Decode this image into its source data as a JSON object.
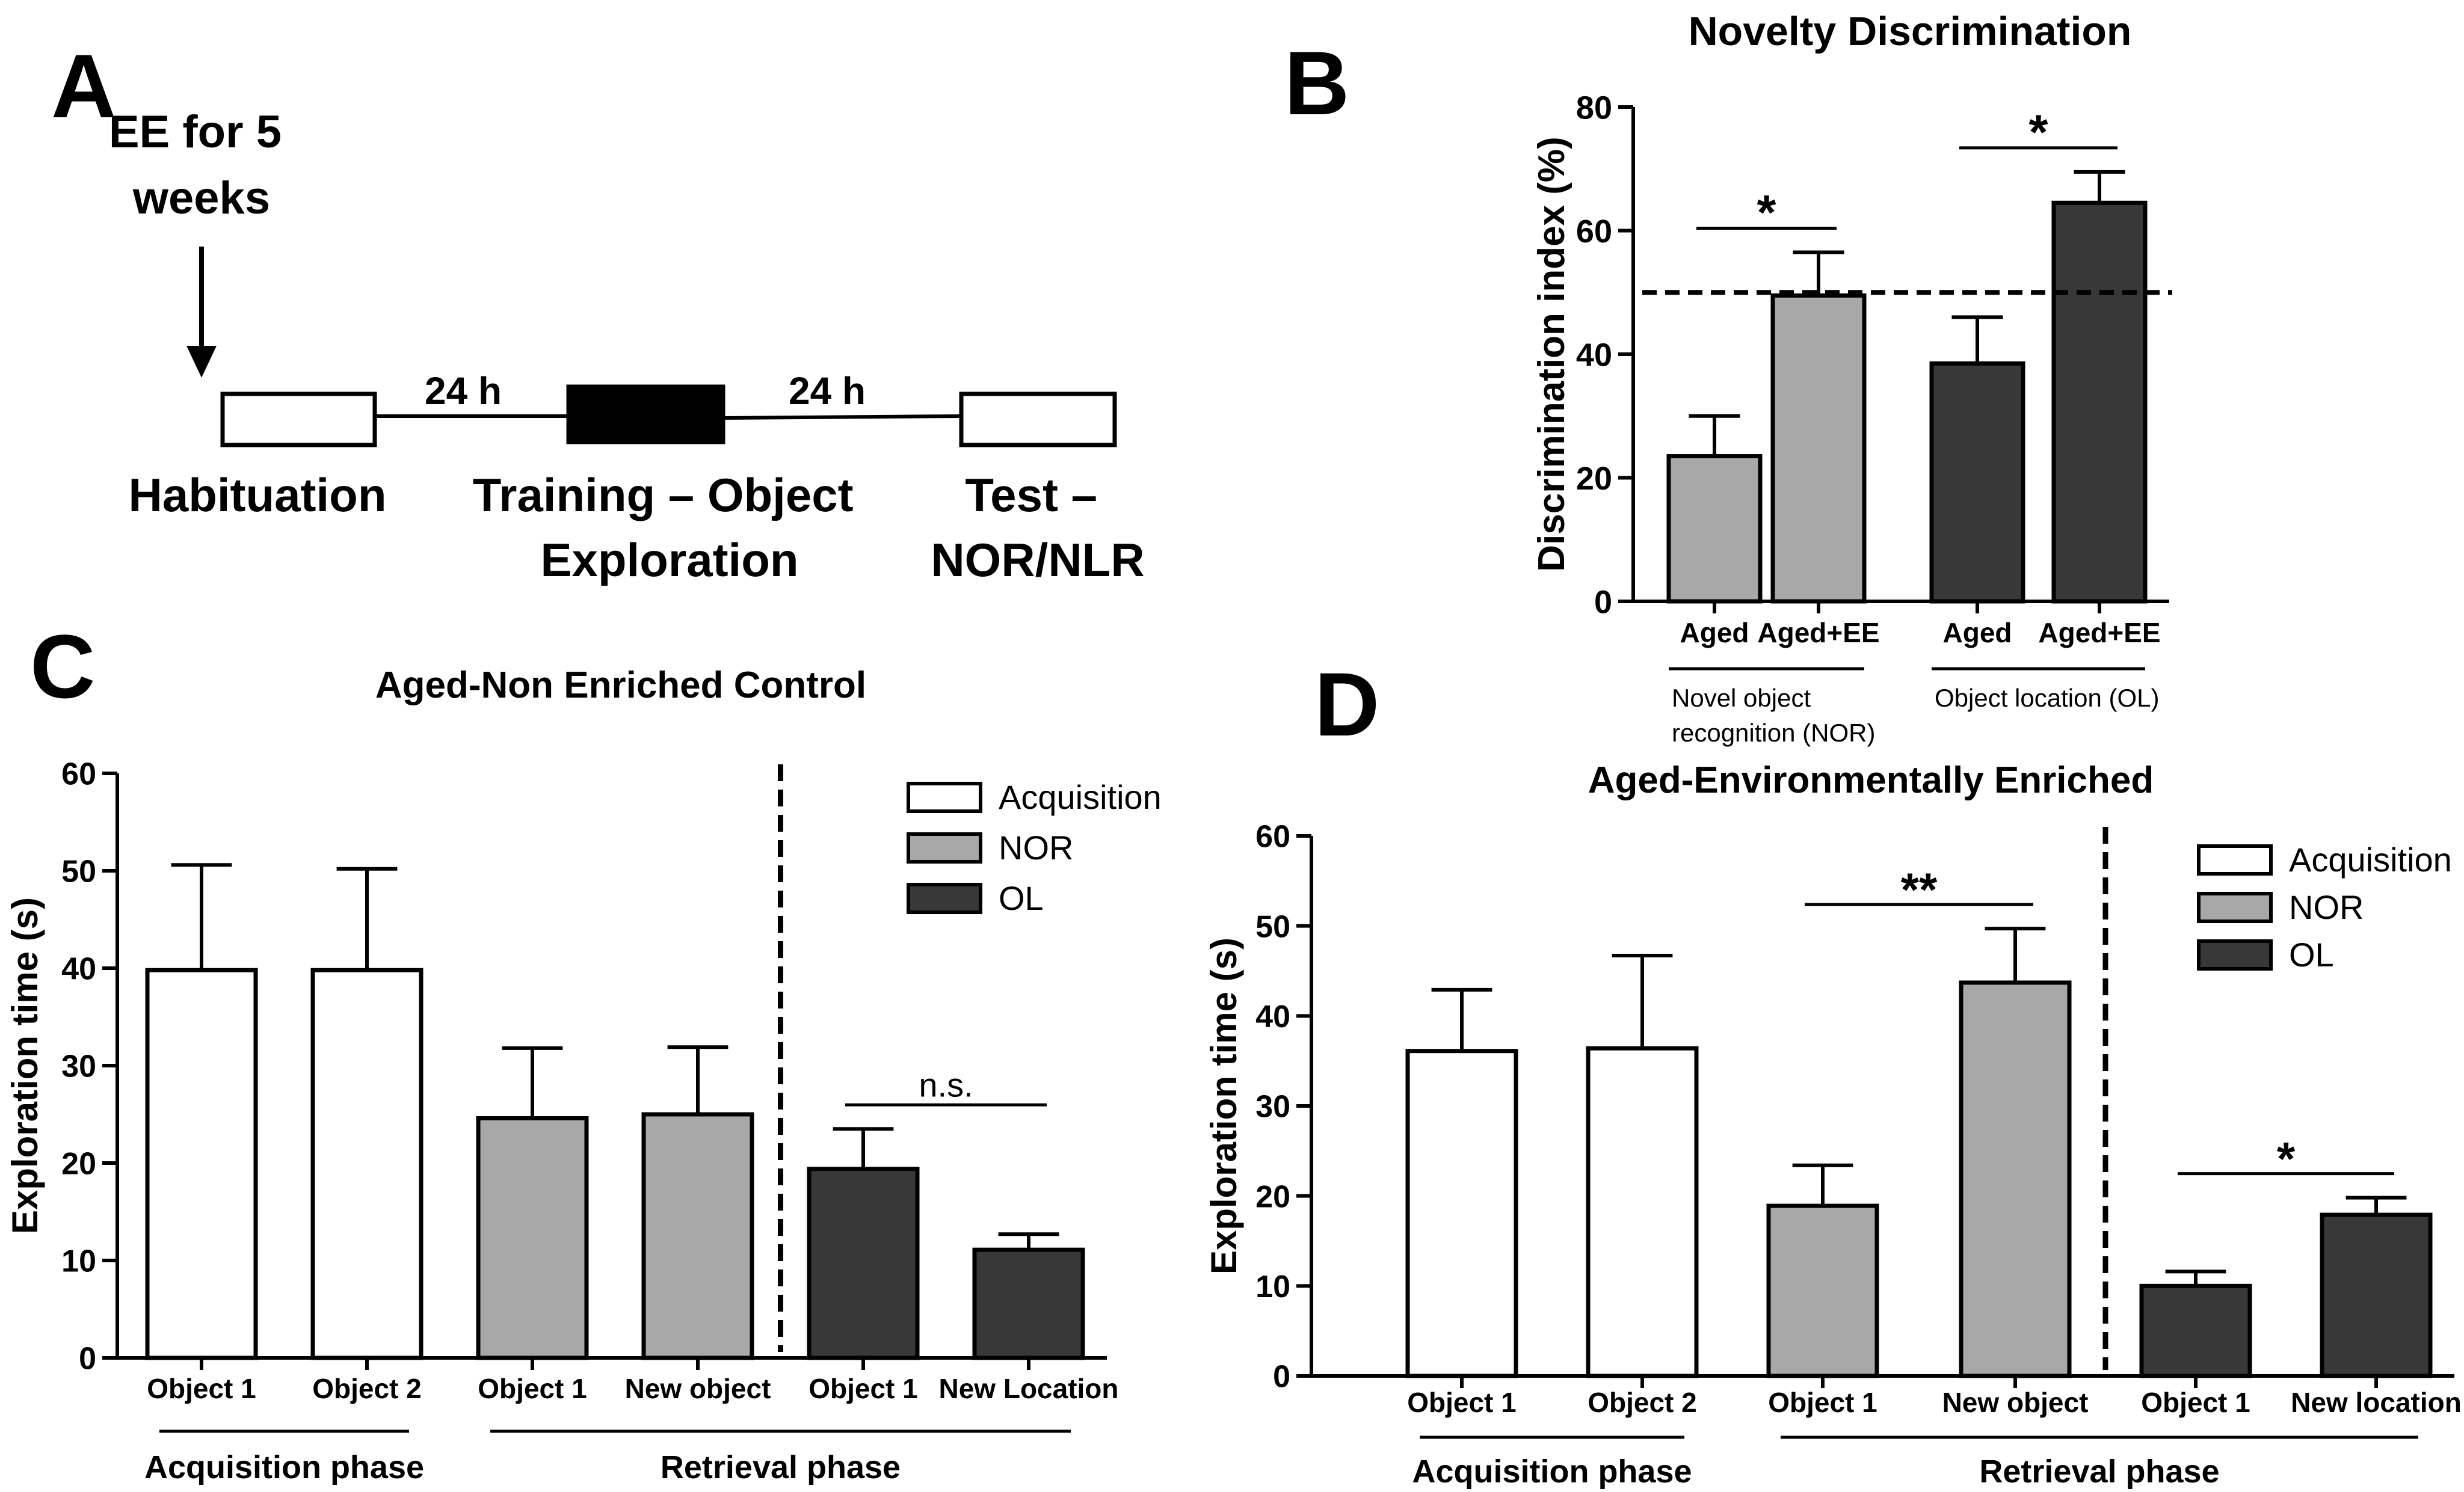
{
  "colors": {
    "white": "#ffffff",
    "light_gray": "#a8a8a8",
    "dark_gray": "#383838",
    "black": "#000000"
  },
  "panel_a": {
    "label": "A",
    "annotation": "EE for 5 weeks",
    "annotation_lines": [
      "EE for 5",
      "weeks"
    ],
    "gap1": "24 h",
    "gap2": "24 h",
    "stage1": "Habituation",
    "stage2_lines": [
      "Training – Object",
      "Exploration"
    ],
    "stage3_lines": [
      "Test –",
      "NOR/NLR"
    ]
  },
  "chart_data": [
    {
      "id": "B",
      "type": "bar",
      "panel_label": "B",
      "title": "Novelty Discrimination",
      "xlabel": "",
      "ylabel": "Discrimination index (%)",
      "ylim": [
        0,
        80
      ],
      "yticks": [
        0,
        20,
        40,
        60,
        80
      ],
      "categories": [
        "Aged",
        "Aged+EE",
        "Aged",
        "Aged+EE"
      ],
      "values": [
        23.5,
        49.5,
        38.5,
        64.5
      ],
      "errors": [
        6.5,
        7,
        7.5,
        5
      ],
      "fills": [
        "light_gray",
        "light_gray",
        "dark_gray",
        "dark_gray"
      ],
      "reference_line": 50,
      "groups": [
        {
          "label_lines": [
            "Novel object",
            "recognition (NOR)"
          ],
          "from": 0,
          "to": 1
        },
        {
          "label_lines": [
            "Object location (OL)"
          ],
          "from": 2,
          "to": 3
        }
      ],
      "significance": [
        {
          "from": 0,
          "to": 1,
          "text": "*"
        },
        {
          "from": 2,
          "to": 3,
          "text": "*"
        }
      ]
    },
    {
      "id": "C",
      "type": "bar",
      "panel_label": "C",
      "title": "Aged-Non Enriched Control",
      "xlabel": "",
      "ylabel": "Exploration time (s)",
      "ylim": [
        0,
        60
      ],
      "yticks": [
        0,
        10,
        20,
        30,
        40,
        50,
        60
      ],
      "categories": [
        "Object 1",
        "Object 2",
        "Object 1",
        "New object",
        "Object 1",
        "New Location"
      ],
      "values": [
        39.8,
        39.8,
        24.6,
        25.0,
        19.4,
        11.1
      ],
      "errors": [
        10.8,
        10.4,
        7.2,
        6.9,
        4.1,
        1.6
      ],
      "fills": [
        "white",
        "white",
        "light_gray",
        "light_gray",
        "dark_gray",
        "dark_gray"
      ],
      "legend": [
        {
          "name": "Acquisition",
          "fill": "white"
        },
        {
          "name": "NOR",
          "fill": "light_gray"
        },
        {
          "name": "OL",
          "fill": "dark_gray"
        }
      ],
      "legend_position": "top-right",
      "phases": [
        {
          "label": "Acquisition phase",
          "from": 0,
          "to": 1
        },
        {
          "label": "Retrieval phase",
          "from": 2,
          "to": 5
        }
      ],
      "divider_after": 3,
      "significance": [
        {
          "from": 4,
          "to": 5,
          "text": "n.s."
        }
      ]
    },
    {
      "id": "D",
      "type": "bar",
      "panel_label": "D",
      "title": "Aged-Environmentally Enriched",
      "xlabel": "",
      "ylabel": "Exploration time (s)",
      "ylim": [
        0,
        60
      ],
      "yticks": [
        0,
        10,
        20,
        30,
        40,
        50,
        60
      ],
      "categories": [
        "Object 1",
        "Object 2",
        "Object 1",
        "New object",
        "Object 1",
        "New location"
      ],
      "values": [
        36.1,
        36.4,
        18.9,
        43.7,
        10.0,
        17.9
      ],
      "errors": [
        6.8,
        10.3,
        4.5,
        6.0,
        1.6,
        1.9
      ],
      "fills": [
        "white",
        "white",
        "light_gray",
        "light_gray",
        "dark_gray",
        "dark_gray"
      ],
      "legend": [
        {
          "name": "Acquisition",
          "fill": "white"
        },
        {
          "name": "NOR",
          "fill": "light_gray"
        },
        {
          "name": "OL",
          "fill": "dark_gray"
        }
      ],
      "legend_position": "top-right",
      "phases": [
        {
          "label": "Acquisition phase",
          "from": 0,
          "to": 1
        },
        {
          "label": "Retrieval phase",
          "from": 2,
          "to": 5
        }
      ],
      "divider_after": 3,
      "significance": [
        {
          "from": 2,
          "to": 3,
          "text": "**"
        },
        {
          "from": 4,
          "to": 5,
          "text": "*"
        }
      ]
    }
  ]
}
